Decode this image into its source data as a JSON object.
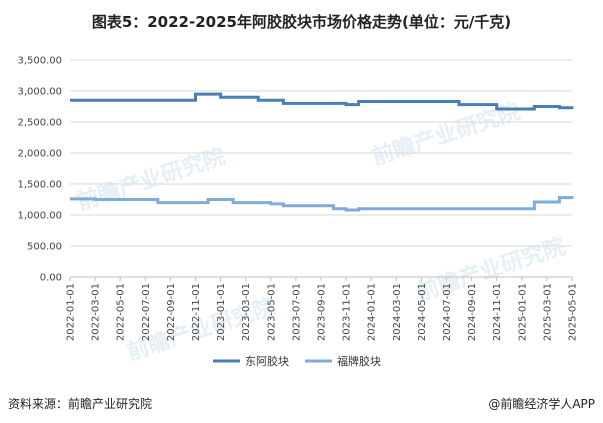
{
  "title": "图表5：2022-2025年阿胶胶块市场价格走势(单位：元/千克)",
  "footer": {
    "source": "资料来源：前瞻产业研究院",
    "brand": "@前瞻经济学人APP"
  },
  "watermark": "前瞻产业研究院",
  "colors": {
    "dong_e": "#4a7db5",
    "fupai": "#7fabd9",
    "grid": "#d9d9d9",
    "axis": "#bfbfbf"
  },
  "chart_data": {
    "type": "line",
    "title": "图表5：2022-2025年阿胶胶块市场价格走势(单位：元/千克)",
    "xlabel": "",
    "ylabel": "",
    "ylim": [
      0,
      3500
    ],
    "yticks": [
      "0.00",
      "500.00",
      "1,000.00",
      "1,500.00",
      "2,000.00",
      "2,500.00",
      "3,000.00",
      "3,500.00"
    ],
    "xticks": [
      "2022-01-01",
      "2022-03-01",
      "2022-05-01",
      "2022-07-01",
      "2022-09-01",
      "2022-11-01",
      "2023-01-01",
      "2023-03-01",
      "2023-05-01",
      "2023-07-01",
      "2023-09-01",
      "2023-11-01",
      "2024-01-01",
      "2024-03-01",
      "2024-05-01",
      "2024-07-01",
      "2024-09-01",
      "2024-11-01",
      "2025-01-01",
      "2025-03-01",
      "2025-05-01"
    ],
    "grid": true,
    "legend": "bottom",
    "series": [
      {
        "name": "东阿胶块",
        "x": [
          "2022-01-01",
          "2022-02-01",
          "2022-03-01",
          "2022-04-01",
          "2022-05-01",
          "2022-06-01",
          "2022-07-01",
          "2022-08-01",
          "2022-09-01",
          "2022-10-01",
          "2022-11-01",
          "2022-12-01",
          "2023-01-01",
          "2023-02-01",
          "2023-03-01",
          "2023-04-01",
          "2023-05-01",
          "2023-06-01",
          "2023-07-01",
          "2023-08-01",
          "2023-09-01",
          "2023-10-01",
          "2023-11-01",
          "2023-12-01",
          "2024-01-01",
          "2024-02-01",
          "2024-03-01",
          "2024-04-01",
          "2024-05-01",
          "2024-06-01",
          "2024-07-01",
          "2024-08-01",
          "2024-09-01",
          "2024-10-01",
          "2024-11-01",
          "2024-12-01",
          "2025-01-01",
          "2025-02-01",
          "2025-03-01",
          "2025-04-01",
          "2025-05-01"
        ],
        "values": [
          2850,
          2850,
          2850,
          2850,
          2850,
          2850,
          2850,
          2850,
          2850,
          2850,
          2950,
          2950,
          2900,
          2900,
          2900,
          2850,
          2850,
          2800,
          2800,
          2800,
          2800,
          2800,
          2780,
          2830,
          2830,
          2830,
          2830,
          2830,
          2830,
          2830,
          2830,
          2780,
          2780,
          2780,
          2710,
          2710,
          2710,
          2750,
          2750,
          2730,
          2710
        ]
      },
      {
        "name": "福牌胶块",
        "x": [
          "2022-01-01",
          "2022-02-01",
          "2022-03-01",
          "2022-04-01",
          "2022-05-01",
          "2022-06-01",
          "2022-07-01",
          "2022-08-01",
          "2022-09-01",
          "2022-10-01",
          "2022-11-01",
          "2022-12-01",
          "2023-01-01",
          "2023-02-01",
          "2023-03-01",
          "2023-04-01",
          "2023-05-01",
          "2023-06-01",
          "2023-07-01",
          "2023-08-01",
          "2023-09-01",
          "2023-10-01",
          "2023-11-01",
          "2023-12-01",
          "2024-01-01",
          "2024-02-01",
          "2024-03-01",
          "2024-04-01",
          "2024-05-01",
          "2024-06-01",
          "2024-07-01",
          "2024-08-01",
          "2024-09-01",
          "2024-10-01",
          "2024-11-01",
          "2024-12-01",
          "2025-01-01",
          "2025-02-01",
          "2025-03-01",
          "2025-04-01",
          "2025-05-01"
        ],
        "values": [
          1260,
          1260,
          1250,
          1250,
          1250,
          1250,
          1250,
          1200,
          1200,
          1200,
          1200,
          1250,
          1250,
          1200,
          1200,
          1200,
          1180,
          1150,
          1150,
          1150,
          1150,
          1100,
          1080,
          1100,
          1100,
          1100,
          1100,
          1100,
          1100,
          1100,
          1100,
          1100,
          1100,
          1100,
          1100,
          1100,
          1100,
          1210,
          1210,
          1280,
          1260
        ]
      }
    ]
  }
}
